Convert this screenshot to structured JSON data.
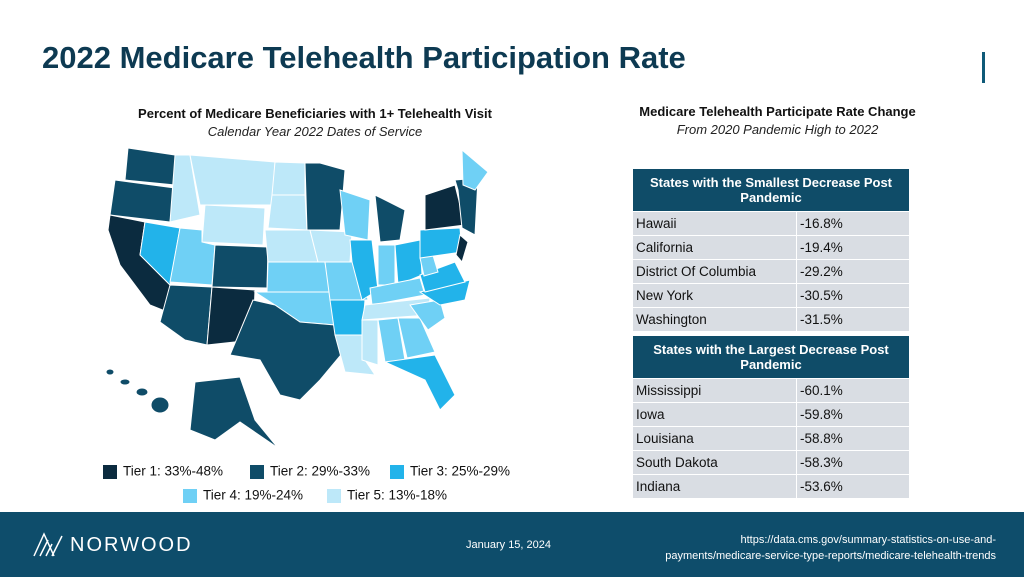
{
  "header": {
    "title": "2022 Medicare Telehealth Participation Rate"
  },
  "map": {
    "title": "Percent of Medicare Beneficiaries with 1+ Telehealth Visit",
    "subtitle": "Calendar Year 2022 Dates of Service",
    "legend": [
      {
        "label": "Tier 1: 33%-48%",
        "color": "#0b2b3f"
      },
      {
        "label": "Tier 2: 29%-33%",
        "color": "#0f4c68"
      },
      {
        "label": "Tier 3: 25%-29%",
        "color": "#22b3ea"
      },
      {
        "label": "Tier 4: 19%-24%",
        "color": "#6fd0f5"
      },
      {
        "label": "Tier 5: 13%-18%",
        "color": "#bde8f9"
      }
    ]
  },
  "tables": {
    "title": "Medicare Telehealth Participate Rate Change",
    "subtitle": "From 2020 Pandemic High to 2022",
    "smallest": {
      "header": "States with the Smallest Decrease Post Pandemic",
      "rows": [
        [
          "Hawaii",
          "-16.8%"
        ],
        [
          "California",
          "-19.4%"
        ],
        [
          "District Of Columbia",
          "-29.2%"
        ],
        [
          "New York",
          "-30.5%"
        ],
        [
          "Washington",
          "-31.5%"
        ]
      ]
    },
    "largest": {
      "header": "States with the Largest Decrease Post Pandemic",
      "rows": [
        [
          "Mississippi",
          "-60.1%"
        ],
        [
          "Iowa",
          "-59.8%"
        ],
        [
          "Louisiana",
          "-58.8%"
        ],
        [
          "South Dakota",
          "-58.3%"
        ],
        [
          "Indiana",
          "-53.6%"
        ]
      ]
    }
  },
  "footer": {
    "brand": "NORWOOD",
    "date": "January 15, 2024",
    "source": [
      "https://data.cms.gov/summary-statistics-on-use-and-",
      "payments/medicare-service-type-reports/medicare-telehealth-trends"
    ]
  }
}
